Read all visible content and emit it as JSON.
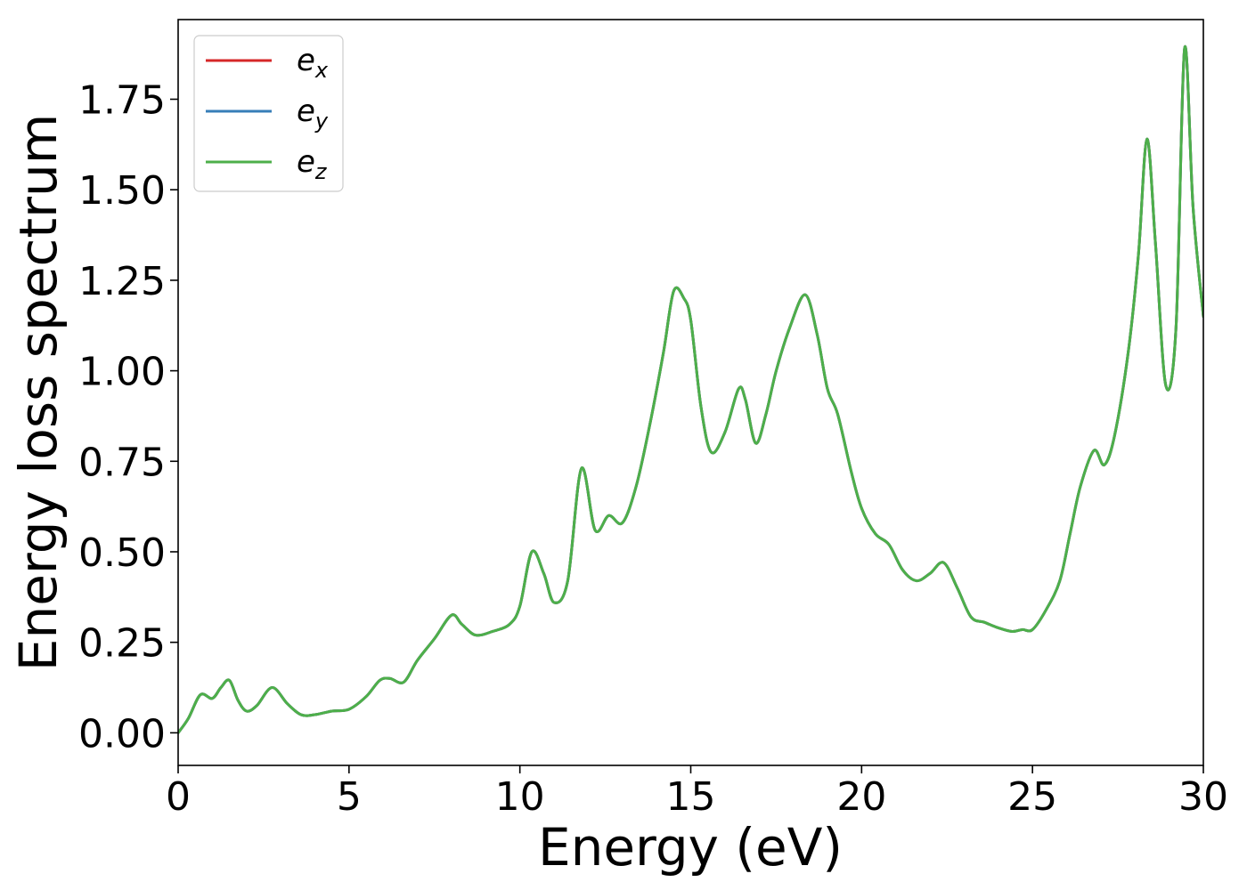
{
  "chart_data": {
    "type": "line",
    "title": "",
    "xlabel": "Energy (eV)",
    "ylabel": "Energy loss spectrum",
    "xlim": [
      0,
      30
    ],
    "ylim": [
      -0.09,
      1.97
    ],
    "xticks": [
      0,
      5,
      10,
      15,
      20,
      25,
      30
    ],
    "xtick_labels": [
      "0",
      "5",
      "10",
      "15",
      "20",
      "25",
      "30"
    ],
    "yticks": [
      0,
      0.25,
      0.5,
      0.75,
      1.0,
      1.25,
      1.5,
      1.75
    ],
    "ytick_labels": [
      "0.00",
      "0.25",
      "0.50",
      "0.75",
      "1.00",
      "1.25",
      "1.50",
      "1.75"
    ],
    "grid": false,
    "legend_position": "top-left",
    "x": [
      0,
      0.3,
      0.65,
      1.0,
      1.25,
      1.5,
      1.75,
      2.0,
      2.3,
      2.75,
      3.2,
      3.6,
      4.0,
      4.5,
      5.0,
      5.5,
      5.9,
      6.2,
      6.6,
      7.0,
      7.5,
      8.0,
      8.3,
      8.7,
      9.2,
      9.7,
      10.0,
      10.35,
      10.7,
      11.0,
      11.4,
      11.8,
      12.2,
      12.6,
      13.0,
      13.4,
      13.8,
      14.2,
      14.5,
      14.8,
      15.0,
      15.3,
      15.6,
      16.0,
      16.4,
      16.6,
      16.9,
      17.2,
      17.5,
      17.9,
      18.35,
      18.7,
      19.0,
      19.3,
      19.7,
      20.0,
      20.4,
      20.8,
      21.2,
      21.6,
      22.0,
      22.4,
      22.8,
      23.2,
      23.6,
      24.0,
      24.4,
      24.7,
      25.0,
      25.4,
      25.8,
      26.1,
      26.4,
      26.8,
      27.1,
      27.4,
      27.8,
      28.1,
      28.35,
      28.6,
      28.9,
      29.2,
      29.45,
      29.7,
      30.0
    ],
    "series": [
      {
        "name": "e_x",
        "legend_main": "e",
        "legend_sub": "x",
        "color": "#d62728",
        "values": [
          0.0,
          0.04,
          0.105,
          0.095,
          0.125,
          0.145,
          0.09,
          0.06,
          0.075,
          0.125,
          0.08,
          0.05,
          0.05,
          0.06,
          0.065,
          0.1,
          0.145,
          0.15,
          0.14,
          0.2,
          0.26,
          0.325,
          0.3,
          0.27,
          0.28,
          0.3,
          0.35,
          0.5,
          0.44,
          0.36,
          0.42,
          0.73,
          0.56,
          0.6,
          0.58,
          0.68,
          0.85,
          1.05,
          1.22,
          1.2,
          1.14,
          0.9,
          0.775,
          0.83,
          0.95,
          0.92,
          0.8,
          0.88,
          1.0,
          1.12,
          1.21,
          1.1,
          0.95,
          0.88,
          0.72,
          0.62,
          0.55,
          0.52,
          0.45,
          0.42,
          0.44,
          0.47,
          0.4,
          0.32,
          0.305,
          0.29,
          0.28,
          0.285,
          0.285,
          0.34,
          0.42,
          0.55,
          0.68,
          0.78,
          0.74,
          0.82,
          1.05,
          1.32,
          1.64,
          1.35,
          0.96,
          1.12,
          1.89,
          1.45,
          1.15
        ]
      },
      {
        "name": "e_y",
        "legend_main": "e",
        "legend_sub": "y",
        "color": "#377eb8",
        "values": [
          0.0,
          0.04,
          0.105,
          0.095,
          0.125,
          0.145,
          0.09,
          0.06,
          0.075,
          0.125,
          0.08,
          0.05,
          0.05,
          0.06,
          0.065,
          0.1,
          0.145,
          0.15,
          0.14,
          0.2,
          0.26,
          0.325,
          0.3,
          0.27,
          0.28,
          0.3,
          0.35,
          0.5,
          0.44,
          0.36,
          0.42,
          0.73,
          0.56,
          0.6,
          0.58,
          0.68,
          0.85,
          1.05,
          1.22,
          1.2,
          1.14,
          0.9,
          0.775,
          0.83,
          0.95,
          0.92,
          0.8,
          0.88,
          1.0,
          1.12,
          1.21,
          1.1,
          0.95,
          0.88,
          0.72,
          0.62,
          0.55,
          0.52,
          0.45,
          0.42,
          0.44,
          0.47,
          0.4,
          0.32,
          0.305,
          0.29,
          0.28,
          0.285,
          0.285,
          0.34,
          0.42,
          0.55,
          0.68,
          0.78,
          0.74,
          0.82,
          1.05,
          1.32,
          1.64,
          1.35,
          0.96,
          1.12,
          1.89,
          1.45,
          1.15
        ]
      },
      {
        "name": "e_z",
        "legend_main": "e",
        "legend_sub": "z",
        "color": "#4daf4a",
        "values": [
          0.0,
          0.04,
          0.105,
          0.095,
          0.125,
          0.145,
          0.09,
          0.06,
          0.075,
          0.125,
          0.08,
          0.05,
          0.05,
          0.06,
          0.065,
          0.1,
          0.145,
          0.15,
          0.14,
          0.2,
          0.26,
          0.325,
          0.3,
          0.27,
          0.28,
          0.3,
          0.35,
          0.5,
          0.44,
          0.36,
          0.42,
          0.73,
          0.56,
          0.6,
          0.58,
          0.68,
          0.85,
          1.05,
          1.22,
          1.2,
          1.14,
          0.9,
          0.775,
          0.83,
          0.95,
          0.92,
          0.8,
          0.88,
          1.0,
          1.12,
          1.21,
          1.1,
          0.95,
          0.88,
          0.72,
          0.62,
          0.55,
          0.52,
          0.45,
          0.42,
          0.44,
          0.47,
          0.4,
          0.32,
          0.305,
          0.29,
          0.28,
          0.285,
          0.285,
          0.34,
          0.42,
          0.55,
          0.68,
          0.78,
          0.74,
          0.82,
          1.05,
          1.32,
          1.64,
          1.35,
          0.96,
          1.12,
          1.89,
          1.45,
          1.15
        ]
      }
    ]
  }
}
